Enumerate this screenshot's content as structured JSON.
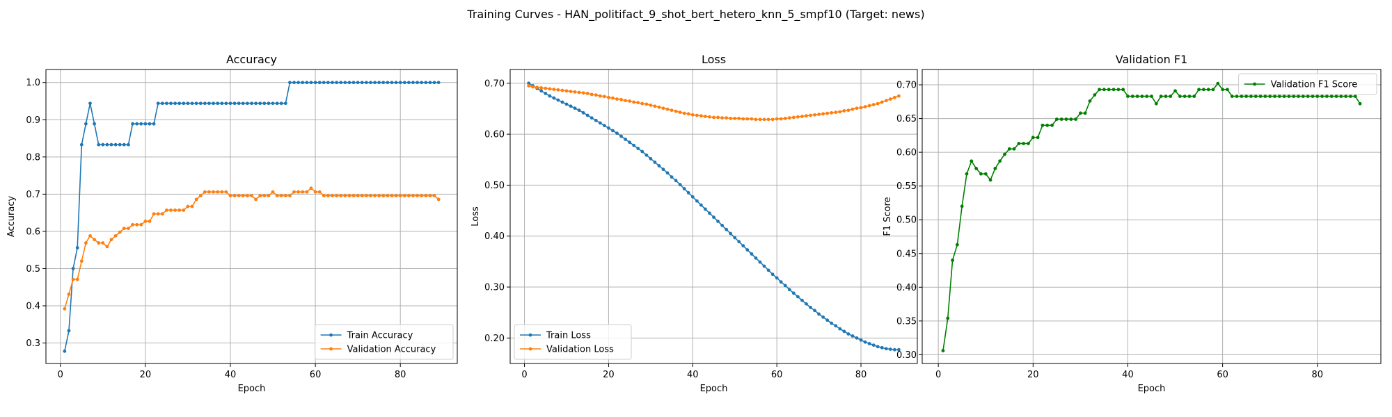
{
  "figure_title": "Training Curves - HAN_politifact_9_shot_bert_hetero_knn_5_smpf10 (Target: news)",
  "colors": {
    "train": "#1f77b4",
    "validation": "#ff7f0e",
    "f1": "#008000"
  },
  "chart_data": [
    {
      "type": "line",
      "title": "Accuracy",
      "xlabel": "Epoch",
      "ylabel": "Accuracy",
      "xlim": [
        -3.4,
        93.4
      ],
      "ylim": [
        0.245,
        1.035
      ],
      "xticks": [
        0,
        20,
        40,
        60,
        80
      ],
      "yticks": [
        0.3,
        0.4,
        0.5,
        0.6,
        0.7,
        0.8,
        0.9,
        1.0
      ],
      "grid": true,
      "legend_loc": "lower right",
      "series": [
        {
          "name": "Train Accuracy",
          "color": "#1f77b4",
          "x_start": 1,
          "values": [
            0.278,
            0.333,
            0.5,
            0.556,
            0.833,
            0.889,
            0.944,
            0.889,
            0.833,
            0.833,
            0.833,
            0.833,
            0.833,
            0.833,
            0.833,
            0.833,
            0.889,
            0.889,
            0.889,
            0.889,
            0.889,
            0.889,
            0.944,
            0.944,
            0.944,
            0.944,
            0.944,
            0.944,
            0.944,
            0.944,
            0.944,
            0.944,
            0.944,
            0.944,
            0.944,
            0.944,
            0.944,
            0.944,
            0.944,
            0.944,
            0.944,
            0.944,
            0.944,
            0.944,
            0.944,
            0.944,
            0.944,
            0.944,
            0.944,
            0.944,
            0.944,
            0.944,
            0.944,
            1.0,
            1.0,
            1.0,
            1.0,
            1.0,
            1.0,
            1.0,
            1.0,
            1.0,
            1.0,
            1.0,
            1.0,
            1.0,
            1.0,
            1.0,
            1.0,
            1.0,
            1.0,
            1.0,
            1.0,
            1.0,
            1.0,
            1.0,
            1.0,
            1.0,
            1.0,
            1.0,
            1.0,
            1.0,
            1.0,
            1.0,
            1.0,
            1.0,
            1.0,
            1.0,
            1.0
          ]
        },
        {
          "name": "Validation Accuracy",
          "color": "#ff7f0e",
          "x_start": 1,
          "values": [
            0.392,
            0.431,
            0.471,
            0.471,
            0.52,
            0.569,
            0.588,
            0.578,
            0.569,
            0.569,
            0.559,
            0.578,
            0.588,
            0.598,
            0.608,
            0.608,
            0.618,
            0.618,
            0.618,
            0.627,
            0.627,
            0.647,
            0.647,
            0.647,
            0.657,
            0.657,
            0.657,
            0.657,
            0.657,
            0.667,
            0.667,
            0.686,
            0.696,
            0.706,
            0.706,
            0.706,
            0.706,
            0.706,
            0.706,
            0.696,
            0.696,
            0.696,
            0.696,
            0.696,
            0.696,
            0.686,
            0.696,
            0.696,
            0.696,
            0.706,
            0.696,
            0.696,
            0.696,
            0.696,
            0.706,
            0.706,
            0.706,
            0.706,
            0.716,
            0.706,
            0.706,
            0.696,
            0.696,
            0.696,
            0.696,
            0.696,
            0.696,
            0.696,
            0.696,
            0.696,
            0.696,
            0.696,
            0.696,
            0.696,
            0.696,
            0.696,
            0.696,
            0.696,
            0.696,
            0.696,
            0.696,
            0.696,
            0.696,
            0.696,
            0.696,
            0.696,
            0.696,
            0.696,
            0.686
          ]
        }
      ]
    },
    {
      "type": "line",
      "title": "Loss",
      "xlabel": "Epoch",
      "ylabel": "Loss",
      "xlim": [
        -3.4,
        93.4
      ],
      "ylim": [
        0.15,
        0.727
      ],
      "xticks": [
        0,
        20,
        40,
        60,
        80
      ],
      "yticks": [
        0.2,
        0.3,
        0.4,
        0.5,
        0.6,
        0.7
      ],
      "grid": true,
      "legend_loc": "lower left",
      "series": [
        {
          "name": "Train Loss",
          "color": "#1f77b4",
          "x_start": 1,
          "values": [
            0.7,
            0.695,
            0.69,
            0.685,
            0.68,
            0.675,
            0.671,
            0.667,
            0.663,
            0.659,
            0.655,
            0.651,
            0.647,
            0.642,
            0.637,
            0.632,
            0.627,
            0.622,
            0.617,
            0.612,
            0.607,
            0.602,
            0.596,
            0.59,
            0.584,
            0.578,
            0.572,
            0.566,
            0.559,
            0.552,
            0.545,
            0.538,
            0.531,
            0.524,
            0.516,
            0.509,
            0.501,
            0.493,
            0.485,
            0.477,
            0.469,
            0.461,
            0.453,
            0.445,
            0.437,
            0.429,
            0.421,
            0.413,
            0.405,
            0.397,
            0.389,
            0.381,
            0.373,
            0.365,
            0.357,
            0.349,
            0.341,
            0.333,
            0.325,
            0.318,
            0.31,
            0.303,
            0.295,
            0.288,
            0.281,
            0.274,
            0.267,
            0.26,
            0.254,
            0.247,
            0.241,
            0.235,
            0.229,
            0.224,
            0.218,
            0.213,
            0.208,
            0.204,
            0.2,
            0.196,
            0.192,
            0.189,
            0.186,
            0.183,
            0.181,
            0.179,
            0.178,
            0.177,
            0.177
          ]
        },
        {
          "name": "Validation Loss",
          "color": "#ff7f0e",
          "x_start": 1,
          "values": [
            0.695,
            0.693,
            0.692,
            0.691,
            0.69,
            0.689,
            0.688,
            0.687,
            0.686,
            0.685,
            0.684,
            0.683,
            0.682,
            0.681,
            0.68,
            0.678,
            0.677,
            0.675,
            0.674,
            0.672,
            0.671,
            0.669,
            0.668,
            0.666,
            0.665,
            0.663,
            0.662,
            0.66,
            0.659,
            0.657,
            0.655,
            0.653,
            0.651,
            0.649,
            0.647,
            0.645,
            0.643,
            0.641,
            0.64,
            0.638,
            0.637,
            0.636,
            0.635,
            0.634,
            0.633,
            0.633,
            0.632,
            0.632,
            0.631,
            0.631,
            0.631,
            0.63,
            0.63,
            0.63,
            0.629,
            0.629,
            0.629,
            0.629,
            0.629,
            0.63,
            0.63,
            0.631,
            0.632,
            0.633,
            0.634,
            0.635,
            0.636,
            0.637,
            0.638,
            0.639,
            0.64,
            0.641,
            0.642,
            0.643,
            0.644,
            0.646,
            0.647,
            0.649,
            0.651,
            0.652,
            0.654,
            0.656,
            0.658,
            0.66,
            0.663,
            0.666,
            0.669,
            0.672,
            0.675
          ]
        }
      ]
    },
    {
      "type": "line",
      "title": "Validation F1",
      "xlabel": "Epoch",
      "ylabel": "F1 Score",
      "xlim": [
        -3.4,
        93.4
      ],
      "ylim": [
        0.287,
        0.7227
      ],
      "xticks": [
        0,
        20,
        40,
        60,
        80
      ],
      "yticks": [
        0.3,
        0.35,
        0.4,
        0.45,
        0.5,
        0.55,
        0.6,
        0.65,
        0.7
      ],
      "grid": true,
      "legend_loc": "upper right",
      "series": [
        {
          "name": "Validation F1 Score",
          "color": "#008000",
          "x_start": 1,
          "values": [
            0.306,
            0.354,
            0.44,
            0.463,
            0.52,
            0.568,
            0.587,
            0.576,
            0.568,
            0.568,
            0.559,
            0.576,
            0.587,
            0.597,
            0.605,
            0.605,
            0.613,
            0.613,
            0.613,
            0.622,
            0.622,
            0.64,
            0.64,
            0.64,
            0.649,
            0.649,
            0.649,
            0.649,
            0.649,
            0.658,
            0.658,
            0.676,
            0.685,
            0.693,
            0.693,
            0.693,
            0.693,
            0.693,
            0.693,
            0.683,
            0.683,
            0.683,
            0.683,
            0.683,
            0.683,
            0.672,
            0.683,
            0.683,
            0.683,
            0.691,
            0.683,
            0.683,
            0.683,
            0.683,
            0.693,
            0.693,
            0.693,
            0.693,
            0.702,
            0.693,
            0.693,
            0.683,
            0.683,
            0.683,
            0.683,
            0.683,
            0.683,
            0.683,
            0.683,
            0.683,
            0.683,
            0.683,
            0.683,
            0.683,
            0.683,
            0.683,
            0.683,
            0.683,
            0.683,
            0.683,
            0.683,
            0.683,
            0.683,
            0.683,
            0.683,
            0.683,
            0.683,
            0.683,
            0.672
          ]
        }
      ]
    }
  ]
}
